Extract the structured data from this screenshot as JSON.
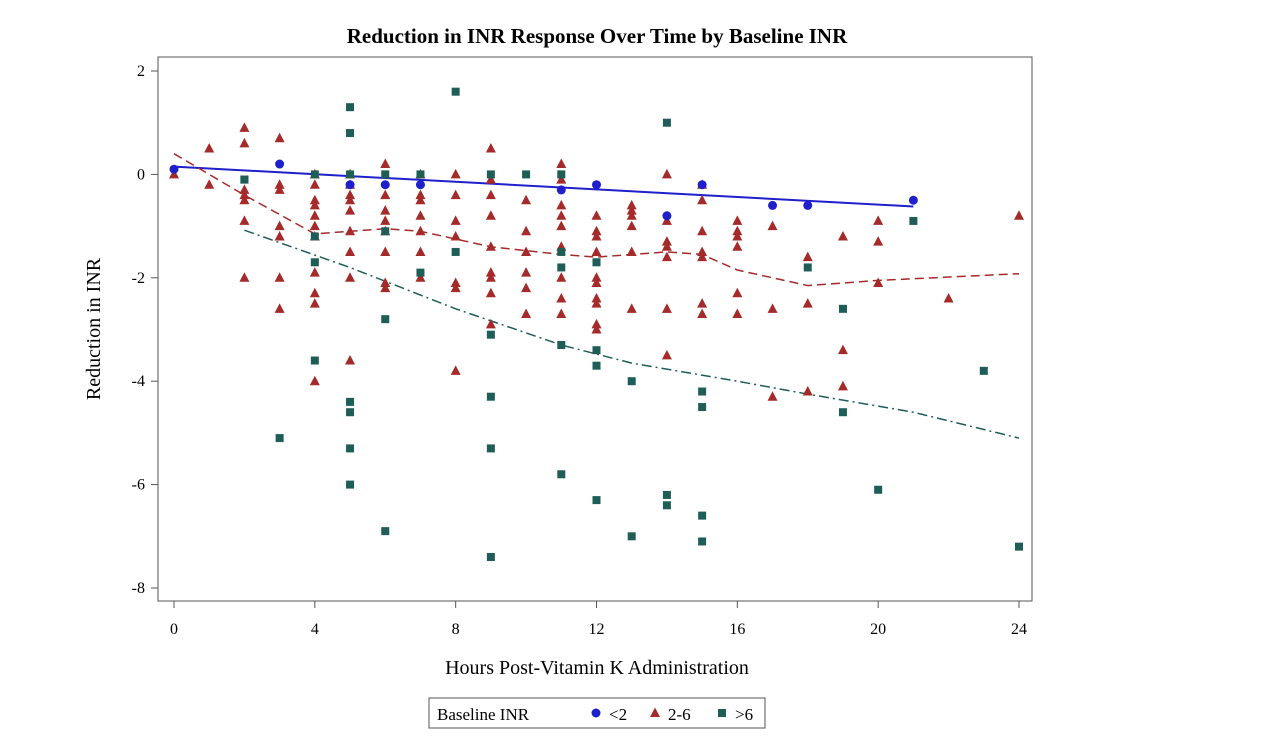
{
  "chart_data": {
    "type": "scatter",
    "title": "Reduction in INR Response Over Time by Baseline INR",
    "xlabel": "Hours Post-Vitamin K Administration",
    "ylabel": "Reduction in INR",
    "xlim": [
      0,
      24
    ],
    "ylim": [
      -8,
      2
    ],
    "xticks": [
      0,
      4,
      8,
      12,
      16,
      20,
      24
    ],
    "yticks": [
      2,
      0,
      -2,
      -4,
      -6,
      -8
    ],
    "grid": false,
    "legend": {
      "title": "Baseline INR",
      "placement": "bottom-center",
      "entries": [
        "<2",
        "2-6",
        ">6"
      ]
    },
    "series": [
      {
        "name": "<2",
        "marker": "circle",
        "color": "#1f1fcc",
        "trend_style": "solid",
        "points": [
          [
            0,
            0.1
          ],
          [
            3,
            0.2
          ],
          [
            5,
            -0.2
          ],
          [
            6,
            -0.2
          ],
          [
            7,
            -0.2
          ],
          [
            11,
            -0.3
          ],
          [
            12,
            -0.2
          ],
          [
            14,
            -0.8
          ],
          [
            15,
            -0.2
          ],
          [
            17,
            -0.6
          ],
          [
            18,
            -0.6
          ],
          [
            21,
            -0.5
          ]
        ],
        "trend": [
          [
            0,
            0.15
          ],
          [
            21,
            -0.62
          ]
        ]
      },
      {
        "name": "2-6",
        "marker": "triangle",
        "color": "#a52a2a",
        "trend_style": "dashed",
        "points": [
          [
            0,
            0
          ],
          [
            1,
            0.5
          ],
          [
            1,
            -0.2
          ],
          [
            2,
            0.9
          ],
          [
            2,
            0.6
          ],
          [
            2,
            -0.3
          ],
          [
            2,
            -0.4
          ],
          [
            2,
            -0.5
          ],
          [
            2,
            -0.9
          ],
          [
            2,
            -2.0
          ],
          [
            3,
            0.7
          ],
          [
            3,
            -0.2
          ],
          [
            3,
            -0.3
          ],
          [
            3,
            -1.0
          ],
          [
            3,
            -1.2
          ],
          [
            3,
            -2.0
          ],
          [
            3,
            -2.6
          ],
          [
            4,
            0
          ],
          [
            4,
            -0.2
          ],
          [
            4,
            -0.5
          ],
          [
            4,
            -0.6
          ],
          [
            4,
            -0.8
          ],
          [
            4,
            -1.0
          ],
          [
            4,
            -1.2
          ],
          [
            4,
            -1.9
          ],
          [
            4,
            -2.3
          ],
          [
            4,
            -2.5
          ],
          [
            4,
            -4.0
          ],
          [
            5,
            0
          ],
          [
            5,
            -0.2
          ],
          [
            5,
            -0.4
          ],
          [
            5,
            -0.5
          ],
          [
            5,
            -0.7
          ],
          [
            5,
            -1.1
          ],
          [
            5,
            -1.5
          ],
          [
            5,
            -2.0
          ],
          [
            5,
            -3.6
          ],
          [
            6,
            0.2
          ],
          [
            6,
            -0.4
          ],
          [
            6,
            -0.7
          ],
          [
            6,
            -0.9
          ],
          [
            6,
            -1.1
          ],
          [
            6,
            -1.5
          ],
          [
            6,
            -2.1
          ],
          [
            6,
            -2.2
          ],
          [
            7,
            0
          ],
          [
            7,
            -0.4
          ],
          [
            7,
            -0.5
          ],
          [
            7,
            -0.8
          ],
          [
            7,
            -1.1
          ],
          [
            7,
            -1.5
          ],
          [
            7,
            -2.0
          ],
          [
            8,
            0
          ],
          [
            8,
            -0.4
          ],
          [
            8,
            -0.9
          ],
          [
            8,
            -1.2
          ],
          [
            8,
            -2.1
          ],
          [
            8,
            -2.2
          ],
          [
            8,
            -3.8
          ],
          [
            9,
            0.5
          ],
          [
            9,
            -0.1
          ],
          [
            9,
            -0.4
          ],
          [
            9,
            -0.8
          ],
          [
            9,
            -1.4
          ],
          [
            9,
            -1.9
          ],
          [
            9,
            -2.0
          ],
          [
            9,
            -2.3
          ],
          [
            9,
            -2.9
          ],
          [
            10,
            -0.5
          ],
          [
            10,
            -1.1
          ],
          [
            10,
            -1.5
          ],
          [
            10,
            -1.9
          ],
          [
            10,
            -2.2
          ],
          [
            10,
            -2.7
          ],
          [
            11,
            0.2
          ],
          [
            11,
            -0.1
          ],
          [
            11,
            -0.6
          ],
          [
            11,
            -0.8
          ],
          [
            11,
            -1.0
          ],
          [
            11,
            -1.4
          ],
          [
            11,
            -2.0
          ],
          [
            11,
            -2.4
          ],
          [
            11,
            -2.7
          ],
          [
            12,
            -0.8
          ],
          [
            12,
            -1.1
          ],
          [
            12,
            -1.2
          ],
          [
            12,
            -1.5
          ],
          [
            12,
            -2.0
          ],
          [
            12,
            -2.1
          ],
          [
            12,
            -2.4
          ],
          [
            12,
            -2.5
          ],
          [
            12,
            -2.9
          ],
          [
            12,
            -3.0
          ],
          [
            13,
            -0.6
          ],
          [
            13,
            -0.7
          ],
          [
            13,
            -0.8
          ],
          [
            13,
            -1.0
          ],
          [
            13,
            -1.5
          ],
          [
            13,
            -2.6
          ],
          [
            14,
            0
          ],
          [
            14,
            -0.9
          ],
          [
            14,
            -1.3
          ],
          [
            14,
            -1.4
          ],
          [
            14,
            -1.6
          ],
          [
            14,
            -2.6
          ],
          [
            14,
            -3.5
          ],
          [
            15,
            -0.2
          ],
          [
            15,
            -0.5
          ],
          [
            15,
            -1.1
          ],
          [
            15,
            -1.5
          ],
          [
            15,
            -1.6
          ],
          [
            15,
            -2.5
          ],
          [
            15,
            -2.7
          ],
          [
            16,
            -0.9
          ],
          [
            16,
            -1.1
          ],
          [
            16,
            -1.2
          ],
          [
            16,
            -1.4
          ],
          [
            16,
            -2.3
          ],
          [
            16,
            -2.7
          ],
          [
            17,
            -1.0
          ],
          [
            17,
            -2.6
          ],
          [
            17,
            -4.3
          ],
          [
            18,
            -1.6
          ],
          [
            18,
            -2.5
          ],
          [
            18,
            -4.2
          ],
          [
            19,
            -1.2
          ],
          [
            19,
            -3.4
          ],
          [
            19,
            -4.1
          ],
          [
            20,
            -0.9
          ],
          [
            20,
            -1.3
          ],
          [
            20,
            -2.1
          ],
          [
            22,
            -2.4
          ],
          [
            24,
            -0.8
          ]
        ],
        "trend": [
          [
            0,
            0.4
          ],
          [
            2,
            -0.4
          ],
          [
            4,
            -1.15
          ],
          [
            6,
            -1.05
          ],
          [
            7,
            -1.1
          ],
          [
            9,
            -1.4
          ],
          [
            11,
            -1.55
          ],
          [
            12,
            -1.6
          ],
          [
            14,
            -1.5
          ],
          [
            15,
            -1.55
          ],
          [
            16,
            -1.85
          ],
          [
            18,
            -2.15
          ],
          [
            20,
            -2.05
          ],
          [
            24,
            -1.92
          ]
        ]
      },
      {
        "name": ">6",
        "marker": "square",
        "color": "#1e5e57",
        "trend_style": "dash-dot",
        "points": [
          [
            2,
            -0.1
          ],
          [
            2,
            -0.1
          ],
          [
            3,
            -5.1
          ],
          [
            4,
            0
          ],
          [
            4,
            -1.2
          ],
          [
            4,
            -1.7
          ],
          [
            4,
            -3.6
          ],
          [
            5,
            1.3
          ],
          [
            5,
            0.8
          ],
          [
            5,
            0
          ],
          [
            5,
            -4.4
          ],
          [
            5,
            -4.6
          ],
          [
            5,
            -5.3
          ],
          [
            5,
            -6.0
          ],
          [
            6,
            0
          ],
          [
            6,
            -1.1
          ],
          [
            6,
            -2.8
          ],
          [
            6,
            -6.9
          ],
          [
            7,
            0
          ],
          [
            7,
            -1.9
          ],
          [
            8,
            1.6
          ],
          [
            8,
            -1.5
          ],
          [
            9,
            0
          ],
          [
            9,
            -3.1
          ],
          [
            9,
            -4.3
          ],
          [
            9,
            -5.3
          ],
          [
            9,
            -7.4
          ],
          [
            10,
            0
          ],
          [
            11,
            0
          ],
          [
            11,
            -1.5
          ],
          [
            11,
            -1.8
          ],
          [
            11,
            -3.3
          ],
          [
            11,
            -5.8
          ],
          [
            12,
            -1.7
          ],
          [
            12,
            -3.4
          ],
          [
            12,
            -3.7
          ],
          [
            12,
            -6.3
          ],
          [
            13,
            -4.0
          ],
          [
            13,
            -7.0
          ],
          [
            14,
            1.0
          ],
          [
            14,
            -6.2
          ],
          [
            14,
            -6.4
          ],
          [
            15,
            -4.2
          ],
          [
            15,
            -4.5
          ],
          [
            15,
            -6.6
          ],
          [
            15,
            -7.1
          ],
          [
            18,
            -1.8
          ],
          [
            19,
            -2.6
          ],
          [
            19,
            -4.6
          ],
          [
            20,
            -6.1
          ],
          [
            21,
            -0.9
          ],
          [
            23,
            -3.8
          ],
          [
            24,
            -7.2
          ]
        ],
        "trend": [
          [
            2,
            -1.08
          ],
          [
            5,
            -1.8
          ],
          [
            8,
            -2.6
          ],
          [
            11,
            -3.3
          ],
          [
            13,
            -3.65
          ],
          [
            16,
            -4.0
          ],
          [
            18,
            -4.25
          ],
          [
            21,
            -4.6
          ],
          [
            24,
            -5.1
          ]
        ]
      }
    ]
  }
}
